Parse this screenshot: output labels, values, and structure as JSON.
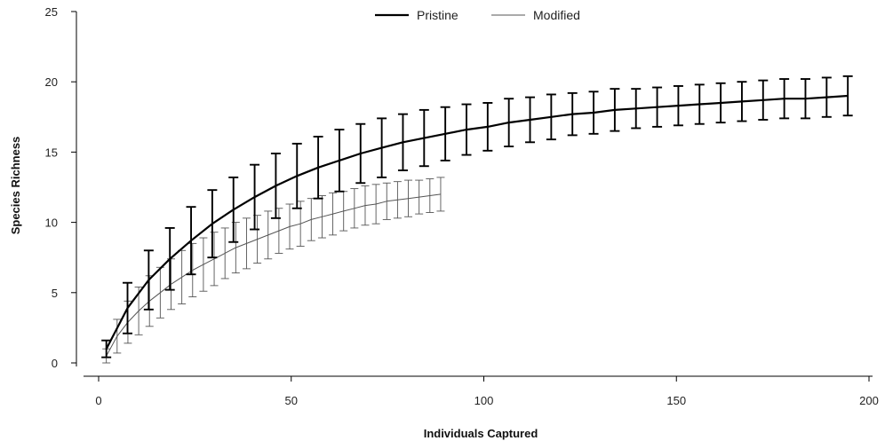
{
  "chart_data": {
    "type": "line",
    "xlabel": "Individuals Captured",
    "ylabel": "Species Richness",
    "xlim": [
      0,
      200
    ],
    "ylim": [
      0,
      25
    ],
    "x_ticks": [
      0,
      50,
      100,
      150,
      200
    ],
    "y_ticks": [
      0,
      5,
      10,
      15,
      20,
      25
    ],
    "grid": false,
    "legend_position": "top-center",
    "series": [
      {
        "name": "Pristine",
        "color": "#000000",
        "x": [
          2,
          7.5,
          13,
          18.5,
          24,
          29.5,
          35,
          40.5,
          46,
          51.5,
          57,
          62.5,
          68,
          73.5,
          79,
          84.5,
          90,
          95.5,
          101,
          106.5,
          112,
          117.5,
          123,
          128.5,
          134,
          139.5,
          145,
          150.5,
          156,
          161.5,
          167,
          172.5,
          178,
          183.5,
          189,
          194.5
        ],
        "y": [
          1.0,
          3.9,
          5.9,
          7.4,
          8.7,
          9.9,
          10.9,
          11.8,
          12.6,
          13.3,
          13.9,
          14.4,
          14.9,
          15.3,
          15.7,
          16.0,
          16.3,
          16.6,
          16.8,
          17.1,
          17.3,
          17.5,
          17.7,
          17.8,
          18.0,
          18.1,
          18.2,
          18.3,
          18.4,
          18.5,
          18.6,
          18.7,
          18.8,
          18.8,
          18.9,
          19.0
        ],
        "error": [
          0.6,
          1.8,
          2.1,
          2.2,
          2.4,
          2.4,
          2.3,
          2.3,
          2.3,
          2.3,
          2.2,
          2.2,
          2.1,
          2.1,
          2.0,
          2.0,
          1.9,
          1.8,
          1.7,
          1.7,
          1.6,
          1.6,
          1.5,
          1.5,
          1.5,
          1.4,
          1.4,
          1.4,
          1.4,
          1.4,
          1.4,
          1.4,
          1.4,
          1.4,
          1.4,
          1.4
        ]
      },
      {
        "name": "Modified",
        "color": "#555555",
        "x": [
          2,
          4.8,
          7.6,
          10.4,
          13.2,
          16,
          18.8,
          21.6,
          24.4,
          27.2,
          30,
          32.8,
          35.6,
          38.4,
          41.2,
          44,
          46.8,
          49.6,
          52.4,
          55.2,
          58,
          60.8,
          63.6,
          66.4,
          69.2,
          72,
          74.8,
          77.6,
          80.4,
          83.2,
          86,
          88.8
        ],
        "y": [
          0.5,
          1.9,
          2.9,
          3.7,
          4.4,
          5.0,
          5.6,
          6.1,
          6.6,
          7.0,
          7.4,
          7.8,
          8.2,
          8.5,
          8.8,
          9.1,
          9.4,
          9.7,
          9.9,
          10.2,
          10.4,
          10.6,
          10.8,
          11.0,
          11.2,
          11.3,
          11.5,
          11.6,
          11.7,
          11.8,
          11.9,
          12.0
        ],
        "error": [
          0.5,
          1.2,
          1.5,
          1.7,
          1.8,
          1.8,
          1.8,
          1.9,
          1.9,
          1.9,
          1.9,
          1.8,
          1.8,
          1.8,
          1.7,
          1.7,
          1.6,
          1.6,
          1.6,
          1.5,
          1.5,
          1.5,
          1.4,
          1.4,
          1.4,
          1.4,
          1.3,
          1.3,
          1.3,
          1.2,
          1.2,
          1.2
        ]
      }
    ]
  }
}
